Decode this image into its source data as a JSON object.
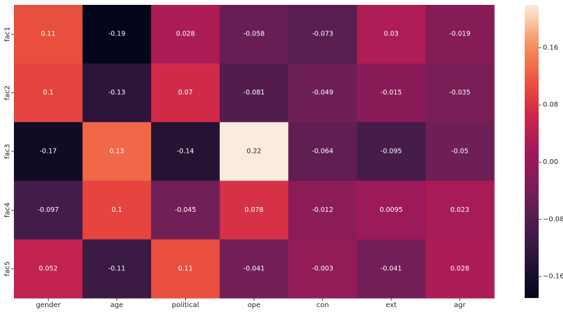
{
  "chart_data": {
    "type": "heatmap",
    "x_categories": [
      "gender",
      "age",
      "political",
      "ope",
      "con",
      "ext",
      "agr"
    ],
    "y_categories": [
      "fac1",
      "fac2",
      "fac3",
      "fac4",
      "fac5"
    ],
    "values": [
      [
        0.11,
        -0.19,
        0.028,
        -0.058,
        -0.073,
        0.03,
        -0.019
      ],
      [
        0.1,
        -0.13,
        0.07,
        -0.081,
        -0.049,
        -0.015,
        -0.035
      ],
      [
        -0.17,
        0.13,
        -0.14,
        0.22,
        -0.064,
        -0.095,
        -0.05
      ],
      [
        -0.097,
        0.1,
        -0.045,
        0.078,
        -0.012,
        0.0095,
        0.023
      ],
      [
        0.052,
        -0.11,
        0.11,
        -0.041,
        -0.003,
        -0.041,
        0.028
      ]
    ],
    "cell_labels": [
      [
        "0.11",
        "-0.19",
        "0.028",
        "-0.058",
        "-0.073",
        "0.03",
        "-0.019"
      ],
      [
        "0.1",
        "-0.13",
        "0.07",
        "-0.081",
        "-0.049",
        "-0.015",
        "-0.035"
      ],
      [
        "-0.17",
        "0.13",
        "-0.14",
        "0.22",
        "-0.064",
        "-0.095",
        "-0.05"
      ],
      [
        "-0.097",
        "0.1",
        "-0.045",
        "0.078",
        "-0.012",
        "0.0095",
        "0.023"
      ],
      [
        "0.052",
        "-0.11",
        "0.11",
        "-0.041",
        "-0.003",
        "-0.041",
        "0.028"
      ]
    ],
    "colormap": "rocket",
    "vmin": -0.19,
    "vmax": 0.22,
    "colorbar": {
      "ticks": [
        0.16,
        0.08,
        0.0,
        -0.08,
        -0.16
      ],
      "tick_labels": [
        "0.16",
        "0.08",
        "0.00",
        "−0.08",
        "−0.16"
      ]
    },
    "colors": {
      "annotation_light": "#ffffff",
      "annotation_dark": "#262626",
      "axis_text": "#262626"
    }
  }
}
